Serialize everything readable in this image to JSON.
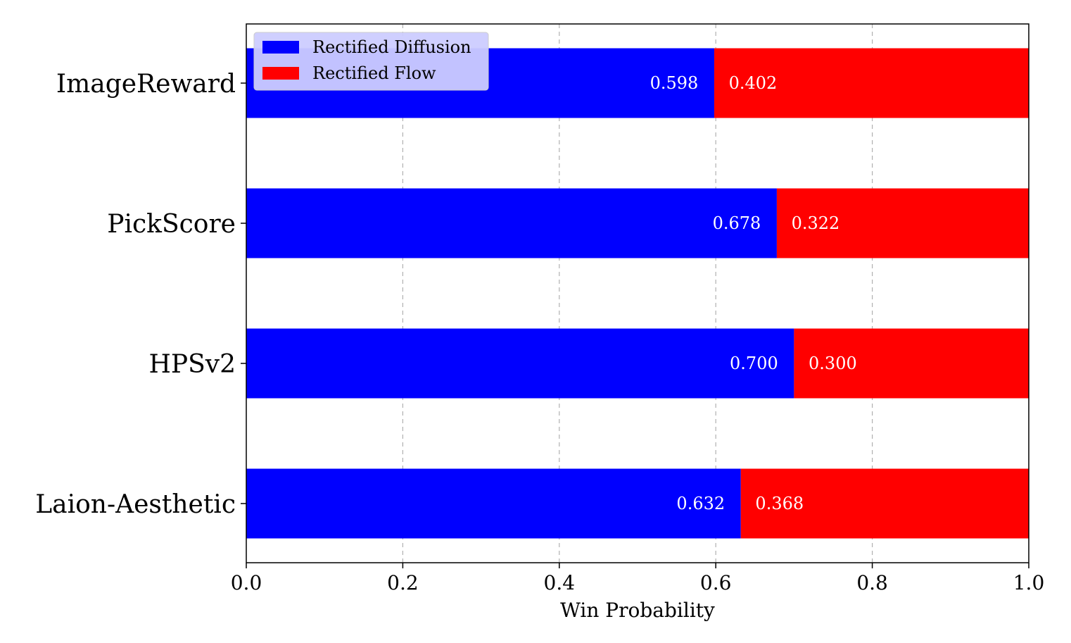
{
  "chart_data": {
    "type": "bar",
    "orientation": "horizontal",
    "stacked": true,
    "categories": [
      "ImageReward",
      "PickScore",
      "HPSv2",
      "Laion-Aesthetic"
    ],
    "series": [
      {
        "name": "Rectified Diffusion",
        "color": "#0000ff",
        "values": [
          0.598,
          0.678,
          0.7,
          0.632
        ],
        "labels": [
          "0.598",
          "0.678",
          "0.700",
          "0.632"
        ]
      },
      {
        "name": "Rectified Flow",
        "color": "#ff0000",
        "values": [
          0.402,
          0.322,
          0.3,
          0.368
        ],
        "labels": [
          "0.402",
          "0.322",
          "0.300",
          "0.368"
        ]
      }
    ],
    "xlabel": "Win Probability",
    "ylabel": "",
    "title": "",
    "xlim": [
      0.0,
      1.0
    ],
    "xticks": [
      0.0,
      0.2,
      0.4,
      0.6,
      0.8,
      1.0
    ],
    "xtick_labels": [
      "0.0",
      "0.2",
      "0.4",
      "0.6",
      "0.8",
      "1.0"
    ],
    "grid": "x, dashed",
    "legend_position": "top-left"
  }
}
